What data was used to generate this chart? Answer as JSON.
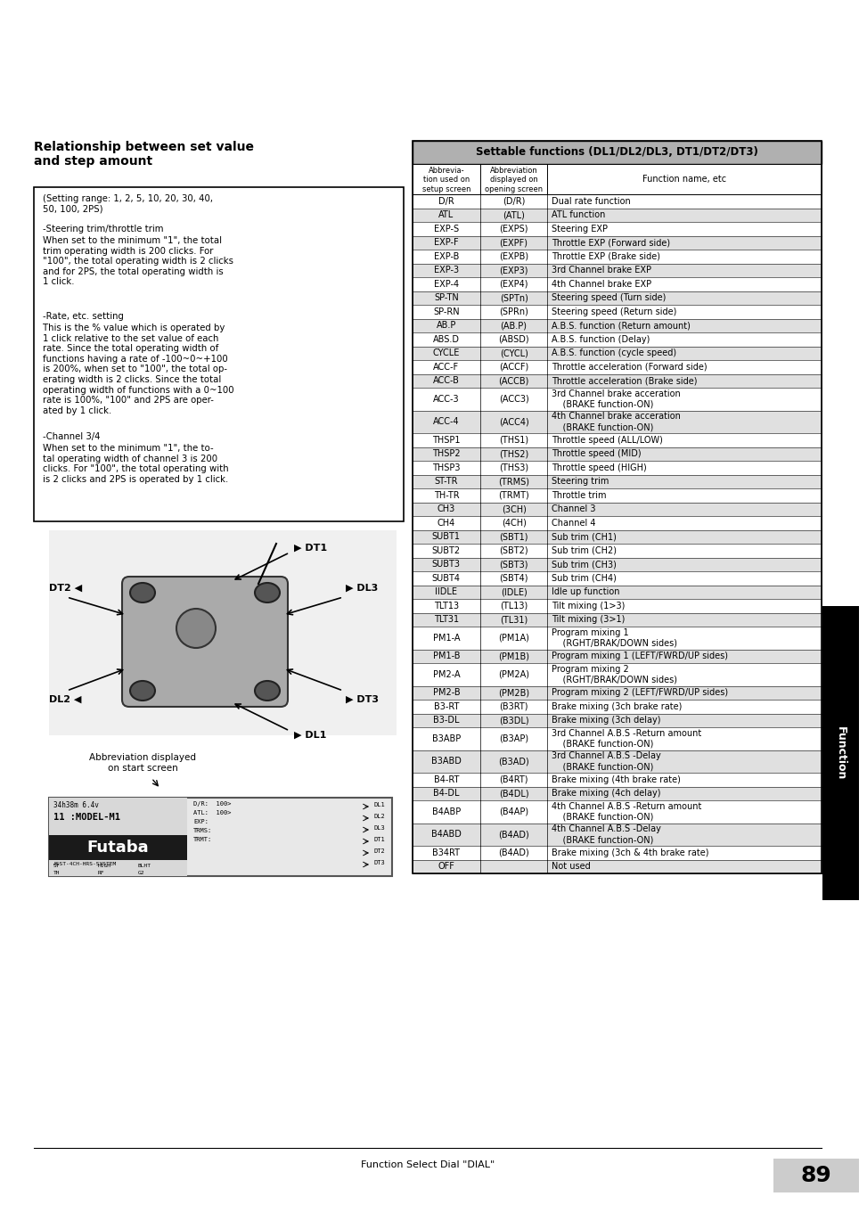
{
  "page_bg": "#ffffff",
  "page_number": "89",
  "footer_text": "Function Select Dial \"DIAL\"",
  "left_title": "Relationship between set value\nand step amount",
  "body_paragraphs": [
    "(Setting range: 1, 2, 5, 10, 20, 30, 40,\n50, 100, 2PS)",
    "-Steering trim/throttle trim",
    "When set to the minimum \"1\", the total\ntrim operating width is 200 clicks. For\n\"100\", the total operating width is 2 clicks\nand for 2PS, the total operating width is\n1 click.",
    "-Rate, etc. setting",
    "This is the % value which is operated by\n1 click relative to the set value of each\nrate. Since the total operating width of\nfunctions having a rate of -100~0~+100\nis 200%, when set to \"100\", the total op-\nerating width is 2 clicks. Since the total\noperating width of functions with a 0~100\nrate is 100%, \"100\" and 2PS are oper-\nated by 1 click.",
    "-Channel 3/4",
    "When set to the minimum \"1\", the to-\ntal operating width of channel 3 is 200\nclicks. For \"100\", the total operating with\nis 2 clicks and 2PS is operated by 1 click."
  ],
  "abbrev_caption": "Abbreviation displayed\non start screen",
  "table_title": "Settable functions (DL1/DL2/DL3, DT1/DT2/DT3)",
  "table_headers": [
    "Abbrevia-\ntion used on\nsetup screen",
    "Abbreviation\ndisplayed on\nopening screen",
    "Function name, etc"
  ],
  "table_rows": [
    [
      "D/R",
      "(D/R)",
      "Dual rate function",
      false
    ],
    [
      "ATL",
      "(ATL)",
      "ATL function",
      true
    ],
    [
      "EXP-S",
      "(EXPS)",
      "Steering EXP",
      false
    ],
    [
      "EXP-F",
      "(EXPF)",
      "Throttle EXP (Forward side)",
      true
    ],
    [
      "EXP-B",
      "(EXPB)",
      "Throttle EXP (Brake side)",
      false
    ],
    [
      "EXP-3",
      "(EXP3)",
      "3rd Channel brake EXP",
      true
    ],
    [
      "EXP-4",
      "(EXP4)",
      "4th Channel brake EXP",
      false
    ],
    [
      "SP-TN",
      "(SPTn)",
      "Steering speed (Turn side)",
      true
    ],
    [
      "SP-RN",
      "(SPRn)",
      "Steering speed (Return side)",
      false
    ],
    [
      "AB.P",
      "(AB.P)",
      "A.B.S. function (Return amount)",
      true
    ],
    [
      "ABS.D",
      "(ABSD)",
      "A.B.S. function (Delay)",
      false
    ],
    [
      "CYCLE",
      "(CYCL)",
      "A.B.S. function (cycle speed)",
      true
    ],
    [
      "ACC-F",
      "(ACCF)",
      "Throttle acceleration (Forward side)",
      false
    ],
    [
      "ACC-B",
      "(ACCB)",
      "Throttle acceleration (Brake side)",
      true
    ],
    [
      "ACC-3",
      "(ACC3)",
      "3rd Channel brake acceration\n    (BRAKE function-ON)",
      false
    ],
    [
      "ACC-4",
      "(ACC4)",
      "4th Channel brake acceration\n    (BRAKE function-ON)",
      true
    ],
    [
      "THSP1",
      "(THS1)",
      "Throttle speed (ALL/LOW)",
      false
    ],
    [
      "THSP2",
      "(THS2)",
      "Throttle speed (MID)",
      true
    ],
    [
      "THSP3",
      "(THS3)",
      "Throttle speed (HIGH)",
      false
    ],
    [
      "ST-TR",
      "(TRMS)",
      "Steering trim",
      true
    ],
    [
      "TH-TR",
      "(TRMT)",
      "Throttle trim",
      false
    ],
    [
      "CH3",
      "(3CH)",
      "Channel 3",
      true
    ],
    [
      "CH4",
      "(4CH)",
      "Channel 4",
      false
    ],
    [
      "SUBT1",
      "(SBT1)",
      "Sub trim (CH1)",
      true
    ],
    [
      "SUBT2",
      "(SBT2)",
      "Sub trim (CH2)",
      false
    ],
    [
      "SUBT3",
      "(SBT3)",
      "Sub trim (CH3)",
      true
    ],
    [
      "SUBT4",
      "(SBT4)",
      "Sub trim (CH4)",
      false
    ],
    [
      "IIDLE",
      "(IDLE)",
      "Idle up function",
      true
    ],
    [
      "TLT13",
      "(TL13)",
      "Tilt mixing (1>3)",
      false
    ],
    [
      "TLT31",
      "(TL31)",
      "Tilt mixing (3>1)",
      true
    ],
    [
      "PM1-A",
      "(PM1A)",
      "Program mixing 1\n    (RGHT/BRAK/DOWN sides)",
      false
    ],
    [
      "PM1-B",
      "(PM1B)",
      "Program mixing 1 (LEFT/FWRD/UP sides)",
      true
    ],
    [
      "PM2-A",
      "(PM2A)",
      "Program mixing 2\n    (RGHT/BRAK/DOWN sides)",
      false
    ],
    [
      "PM2-B",
      "(PM2B)",
      "Program mixing 2 (LEFT/FWRD/UP sides)",
      true
    ],
    [
      "B3-RT",
      "(B3RT)",
      "Brake mixing (3ch brake rate)",
      false
    ],
    [
      "B3-DL",
      "(B3DL)",
      "Brake mixing (3ch delay)",
      true
    ],
    [
      "B3ABP",
      "(B3AP)",
      "3rd Channel A.B.S -Return amount\n    (BRAKE function-ON)",
      false
    ],
    [
      "B3ABD",
      "(B3AD)",
      "3rd Channel A.B.S -Delay\n    (BRAKE function-ON)",
      true
    ],
    [
      "B4-RT",
      "(B4RT)",
      "Brake mixing (4th brake rate)",
      false
    ],
    [
      "B4-DL",
      "(B4DL)",
      "Brake mixing (4ch delay)",
      true
    ],
    [
      "B4ABP",
      "(B4AP)",
      "4th Channel A.B.S -Return amount\n    (BRAKE function-ON)",
      false
    ],
    [
      "B4ABD",
      "(B4AD)",
      "4th Channel A.B.S -Delay\n    (BRAKE function-ON)",
      true
    ],
    [
      "B34RT",
      "(B4AD)",
      "Brake mixing (3ch & 4th brake rate)",
      false
    ],
    [
      "OFF",
      "",
      "Not used",
      true
    ]
  ],
  "color_page_bg": "#ffffff",
  "color_table_title_bg": "#b0b0b0",
  "color_row_shaded": "#e0e0e0",
  "color_row_white": "#ffffff",
  "color_border": "#000000",
  "color_sidebar_bg": "#000000",
  "color_sidebar_fg": "#ffffff",
  "color_page_num_bg": "#cccccc"
}
